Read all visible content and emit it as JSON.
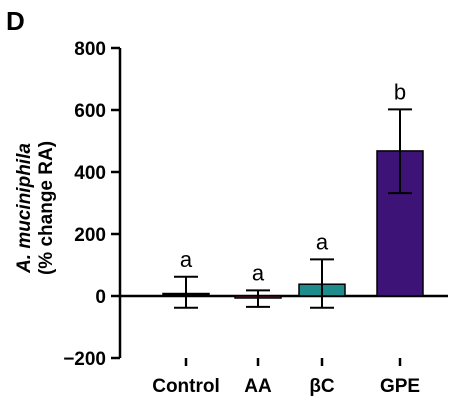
{
  "panel_label": "D",
  "chart_data": {
    "type": "bar",
    "categories": [
      "Control",
      "AA",
      "βC",
      "GPE"
    ],
    "values": [
      8,
      -6,
      38,
      468
    ],
    "errors_upper": [
      62,
      18,
      118,
      602
    ],
    "errors_lower": [
      -38,
      -35,
      -38,
      332
    ],
    "significance": [
      "a",
      "a",
      "a",
      "b"
    ],
    "colors": [
      "#000000",
      "#c2185b",
      "#1e8c8c",
      "#3e1378"
    ],
    "ylabel_line1": "A. muciniphila",
    "ylabel_line2": "(% change RA)",
    "ylim": [
      -200,
      800
    ],
    "yticks": [
      -200,
      0,
      200,
      400,
      600,
      800
    ],
    "ytick_labels": [
      "−200",
      "0",
      "200",
      "400",
      "600",
      "800"
    ],
    "grid": false,
    "legend": "none"
  }
}
